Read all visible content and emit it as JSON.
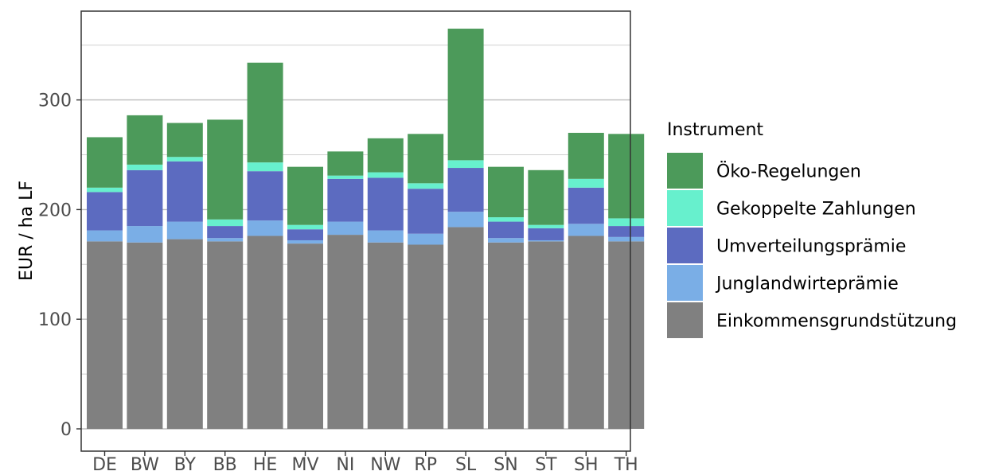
{
  "chart_data": {
    "type": "bar",
    "stacked": true,
    "title": "",
    "xlabel": "",
    "ylabel": "EUR / ha LF",
    "ylim": [
      0,
      375
    ],
    "yticks": [
      0,
      100,
      200,
      300
    ],
    "grid": true,
    "legend_title": "Instrument",
    "legend_position": "right",
    "categories": [
      "DE",
      "BW",
      "BY",
      "BB",
      "HE",
      "MV",
      "NI",
      "NW",
      "RP",
      "SL",
      "SN",
      "ST",
      "SH",
      "TH"
    ],
    "series": [
      {
        "name": "Einkommensgrundstützung",
        "color": "#808080",
        "values": [
          171,
          170,
          173,
          171,
          176,
          169,
          177,
          170,
          168,
          184,
          170,
          171,
          176,
          171
        ]
      },
      {
        "name": "Junglandwirteprämie",
        "color": "#7aaee6",
        "values": [
          10,
          15,
          16,
          3,
          14,
          3,
          12,
          11,
          10,
          14,
          4,
          1,
          11,
          4
        ]
      },
      {
        "name": "Umverteilungsprämie",
        "color": "#5c6bc0",
        "values": [
          35,
          51,
          55,
          11,
          45,
          10,
          39,
          48,
          41,
          40,
          15,
          11,
          33,
          10
        ]
      },
      {
        "name": "Gekoppelte Zahlungen",
        "color": "#67f0cd",
        "values": [
          4,
          5,
          4,
          6,
          8,
          4,
          3,
          5,
          5,
          7,
          4,
          3,
          8,
          7
        ]
      },
      {
        "name": "Öko-Regelungen",
        "color": "#4c9a5a",
        "values": [
          46,
          45,
          31,
          91,
          91,
          53,
          22,
          31,
          45,
          120,
          46,
          50,
          42,
          77
        ]
      }
    ],
    "legend_order": [
      "Öko-Regelungen",
      "Gekoppelte Zahlungen",
      "Umverteilungsprämie",
      "Junglandwirteprämie",
      "Einkommensgrundstützung"
    ]
  }
}
